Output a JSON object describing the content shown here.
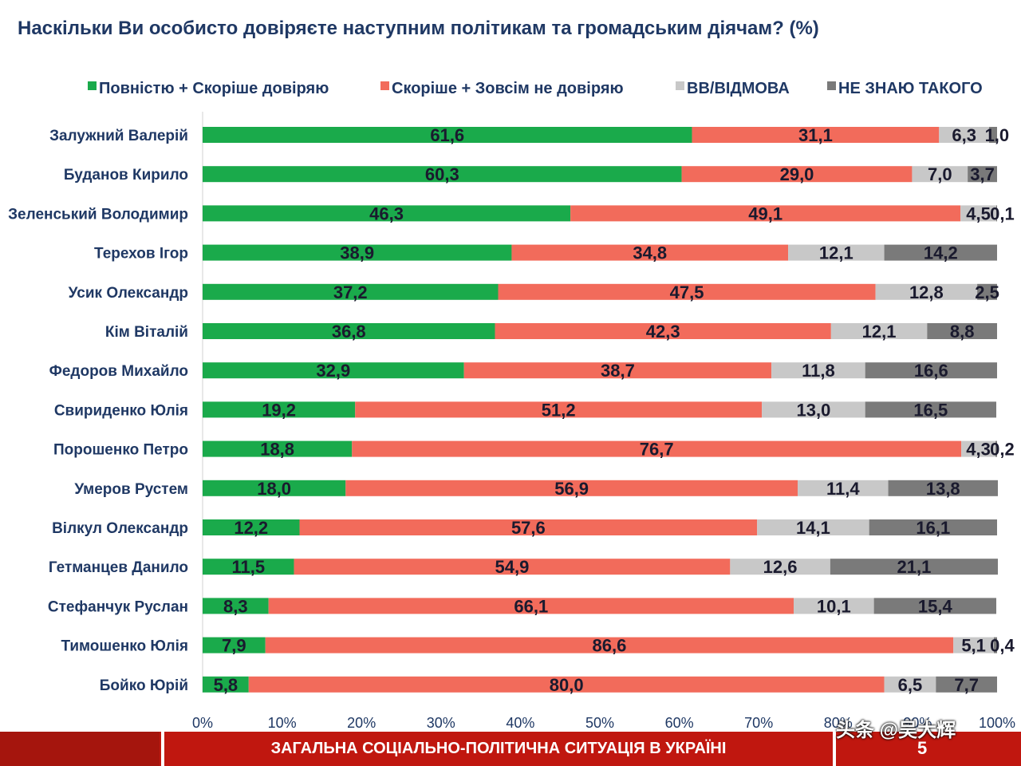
{
  "title": "Наскільки Ви особисто довіряєте наступним політикам та громадським діячам? (%)",
  "footer": {
    "text": "ЗАГАЛЬНА СОЦІАЛЬНО-ПОЛІТИЧНА СИТУАЦІЯ В УКРАЇНІ",
    "page": "5"
  },
  "watermark": "头条 @吴大辉",
  "chart_data": {
    "type": "bar",
    "orientation": "horizontal",
    "stacked": true,
    "title": "Наскільки Ви особисто довіряєте наступним політикам та громадським діячам? (%)",
    "xlim": [
      0,
      100
    ],
    "x_ticks": [
      "0%",
      "10%",
      "20%",
      "30%",
      "40%",
      "50%",
      "60%",
      "70%",
      "80%",
      "90%",
      "100%"
    ],
    "legend_position": "top",
    "categories": [
      "Залужний Валерій",
      "Буданов Кирило",
      "Зеленський Володимир",
      "Терехов Ігор",
      "Усик Олександр",
      "Кім Віталій",
      "Федоров Михайло",
      "Свириденко Юлія",
      "Порошенко Петро",
      "Умеров Рустем",
      "Вілкул Олександр",
      "Гетманцев Данило",
      "Стефанчук Руслан",
      "Тимошенко Юлія",
      "Бойко Юрій"
    ],
    "series": [
      {
        "name": "Повністю + Скоріше довіряю",
        "color": "#1aaa4b",
        "values": [
          61.6,
          60.3,
          46.3,
          38.9,
          37.2,
          36.8,
          32.9,
          19.2,
          18.8,
          18.0,
          12.2,
          11.5,
          8.3,
          7.9,
          5.8
        ],
        "labels": [
          "61,6",
          "60,3",
          "46,3",
          "38,9",
          "37,2",
          "36,8",
          "32,9",
          "19,2",
          "18,8",
          "18,0",
          "12,2",
          "11,5",
          "8,3",
          "7,9",
          "5,8"
        ]
      },
      {
        "name": "Скоріше + Зовсім не довіряю",
        "color": "#f26b5b",
        "values": [
          31.1,
          29.0,
          49.1,
          34.8,
          47.5,
          42.3,
          38.7,
          51.2,
          76.7,
          56.9,
          57.6,
          54.9,
          66.1,
          86.6,
          80.0
        ],
        "labels": [
          "31,1",
          "29,0",
          "49,1",
          "34,8",
          "47,5",
          "42,3",
          "38,7",
          "51,2",
          "76,7",
          "56,9",
          "57,6",
          "54,9",
          "66,1",
          "86,6",
          "80,0"
        ]
      },
      {
        "name": "ВВ/ВІДМОВА",
        "color": "#c8c8c8",
        "values": [
          6.3,
          7.0,
          4.5,
          12.1,
          12.8,
          12.1,
          11.8,
          13.0,
          4.3,
          11.4,
          14.1,
          12.6,
          10.1,
          5.1,
          6.5
        ],
        "labels": [
          "6,3",
          "7,0",
          "4,5",
          "12,1",
          "12,8",
          "12,1",
          "11,8",
          "13,0",
          "4,3",
          "11,4",
          "14,1",
          "12,6",
          "10,1",
          "5,1",
          "6,5"
        ]
      },
      {
        "name": "НЕ ЗНАЮ ТАКОГО",
        "color": "#7a7a7a",
        "values": [
          1.0,
          3.7,
          0.1,
          14.2,
          2.5,
          8.8,
          16.6,
          16.5,
          0.2,
          13.8,
          16.1,
          21.1,
          15.4,
          0.4,
          7.7
        ],
        "labels": [
          "1,0",
          "3,7",
          "0,1",
          "14,2",
          "2,5",
          "8,8",
          "16,6",
          "16,5",
          "0,2",
          "13,8",
          "16,1",
          "21,1",
          "15,4",
          "0,4",
          "7,7"
        ]
      }
    ]
  }
}
